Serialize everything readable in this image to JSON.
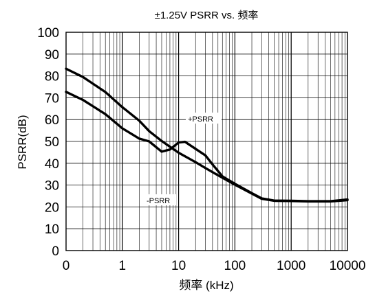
{
  "chart_data": {
    "type": "line",
    "title": "±1.25V  PSRR vs. 频率",
    "xlabel": "频率 (kHz)",
    "ylabel": "PSRR(dB)",
    "xscale": "log",
    "grid": true,
    "xlim": [
      0.1,
      10000
    ],
    "ylim": [
      0,
      100
    ],
    "x_tick_labels": [
      "0",
      "1",
      "10",
      "100",
      "1000",
      "10000"
    ],
    "y_ticks": [
      0,
      10,
      20,
      30,
      40,
      50,
      60,
      70,
      80,
      90,
      100
    ],
    "y_tick_labels": [
      "0",
      "10",
      "20",
      "30",
      "40",
      "50",
      "60",
      "70",
      "80",
      "90",
      "100"
    ],
    "annotations": [
      "+PSRR",
      "-PSRR"
    ],
    "series": [
      {
        "name": "+PSRR",
        "x": [
          0.1,
          0.2,
          0.5,
          1,
          2,
          3,
          5,
          7,
          10,
          13,
          20,
          30,
          40,
          60,
          100,
          200,
          300,
          500,
          1000,
          2000,
          5000,
          10000
        ],
        "y": [
          72.7,
          69,
          62.5,
          56,
          51.3,
          50,
          45.3,
          46.3,
          49.5,
          49.8,
          46.6,
          43.6,
          39.5,
          34,
          30.6,
          26.3,
          23.9,
          22.9,
          22.8,
          22.6,
          22.6,
          23.4
        ]
      },
      {
        "name": "-PSRR",
        "x": [
          0.1,
          0.2,
          0.5,
          1,
          2,
          3,
          5,
          10,
          20,
          30,
          50,
          100,
          200,
          300,
          500,
          1000,
          2000,
          5000,
          10000
        ],
        "y": [
          83.3,
          79.5,
          72.6,
          65.7,
          59.5,
          54.7,
          50.2,
          44.8,
          40.5,
          37.8,
          34.5,
          30.2,
          26.1,
          23.7,
          22.8,
          22.7,
          22.5,
          22.5,
          23.1
        ]
      }
    ]
  },
  "colors": {
    "background": "#ffffff",
    "line": "#000000",
    "grid": "#000000"
  }
}
